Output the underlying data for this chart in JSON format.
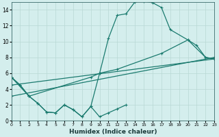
{
  "xlabel": "Humidex (Indice chaleur)",
  "bg_color": "#d4eeed",
  "grid_color": "#b8d8d4",
  "line_color": "#1a7a6e",
  "xlim": [
    0,
    23
  ],
  "ylim": [
    0,
    15
  ],
  "xticks": [
    0,
    1,
    2,
    3,
    4,
    5,
    6,
    7,
    8,
    9,
    10,
    11,
    12,
    13,
    14,
    15,
    16,
    17,
    18,
    19,
    20,
    21,
    22,
    23
  ],
  "yticks": [
    0,
    2,
    4,
    6,
    8,
    10,
    12,
    14
  ],
  "curve1_x": [
    0,
    1,
    2,
    3,
    4,
    5,
    6,
    7,
    8,
    9,
    10,
    11,
    12,
    13,
    14,
    15,
    16,
    17,
    18,
    20,
    21,
    22,
    23
  ],
  "curve1_y": [
    5.5,
    4.5,
    3.1,
    2.2,
    1.1,
    1.0,
    2.0,
    1.4,
    0.5,
    1.8,
    6.0,
    10.4,
    13.3,
    13.5,
    15.0,
    15.1,
    14.9,
    14.3,
    11.5,
    10.2,
    9.5,
    8.0,
    7.8
  ],
  "curve2_x": [
    0,
    2,
    9,
    10,
    12,
    17,
    20,
    22,
    23
  ],
  "curve2_y": [
    5.5,
    3.1,
    5.5,
    6.0,
    6.5,
    8.5,
    10.2,
    8.0,
    7.8
  ],
  "line1_x": [
    0,
    23
  ],
  "line1_y": [
    4.5,
    7.8
  ],
  "line2_x": [
    0,
    23
  ],
  "line2_y": [
    3.1,
    8.0
  ],
  "curve3_x": [
    0,
    1,
    2,
    3,
    4,
    5,
    6,
    7,
    8,
    9,
    10,
    11,
    12,
    13
  ],
  "curve3_y": [
    5.5,
    4.5,
    3.1,
    2.2,
    1.1,
    1.0,
    2.0,
    1.4,
    0.5,
    1.8,
    0.5,
    1.0,
    1.5,
    2.0
  ]
}
